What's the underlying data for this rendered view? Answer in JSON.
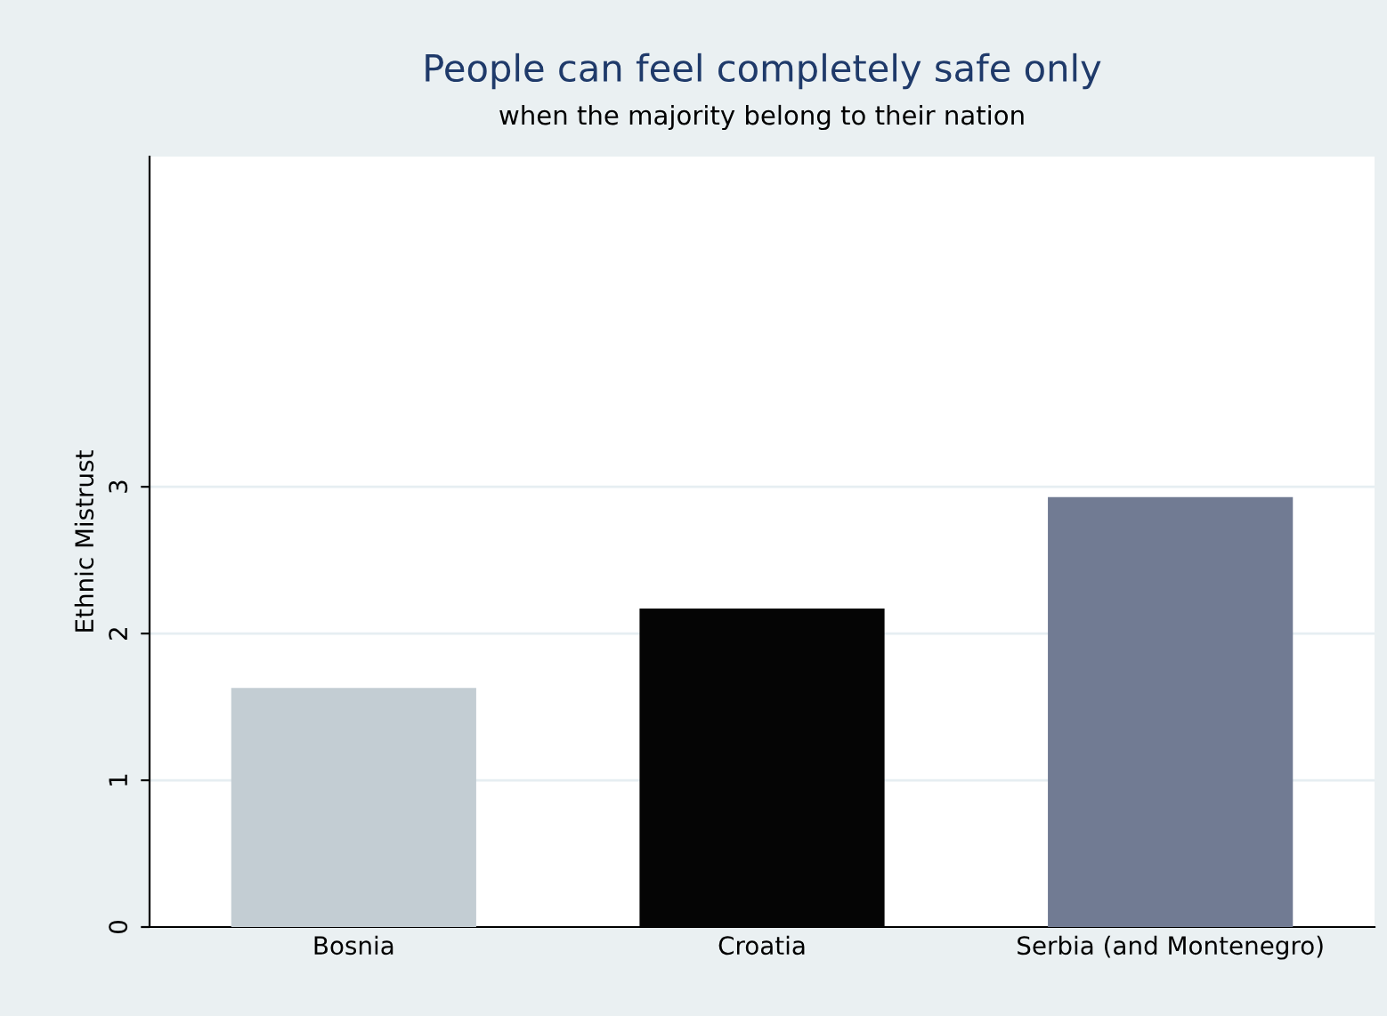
{
  "chart_data": {
    "type": "bar",
    "title": "People can feel completely safe only",
    "subtitle": "when the majority belong to their nation",
    "ylabel": "Ethnic Mistrust",
    "categories": [
      "Bosnia",
      "Croatia",
      "Serbia (and Montenegro)"
    ],
    "values": [
      1.63,
      2.17,
      2.93
    ],
    "colors": [
      "#c3cdd3",
      "#050505",
      "#717b93"
    ],
    "ylim": [
      0,
      5.25
    ],
    "yticks": [
      0,
      1,
      2,
      3
    ],
    "grid": "y"
  }
}
